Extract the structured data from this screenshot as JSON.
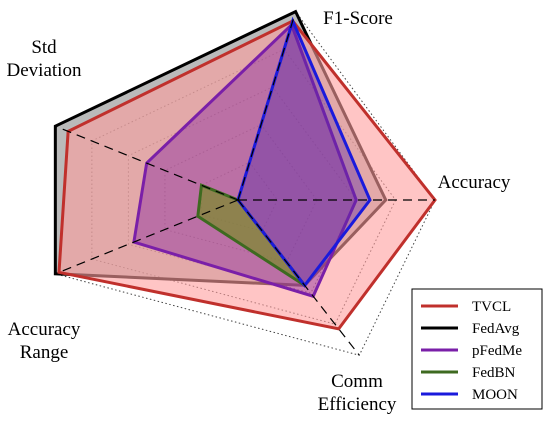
{
  "chart_data": {
    "type": "radar",
    "axes": [
      {
        "name": "Accuracy",
        "lines": [
          "Accuracy"
        ]
      },
      {
        "name": "Comm Efficiency",
        "lines": [
          "Comm",
          "Efficiency"
        ]
      },
      {
        "name": "Accuracy Range",
        "lines": [
          "Accuracy",
          "Range"
        ]
      },
      {
        "name": "Std Deviation",
        "lines": [
          "Std",
          "Deviation"
        ]
      },
      {
        "name": "F1-Score",
        "lines": [
          "F1-Score"
        ]
      }
    ],
    "range": [
      0,
      1
    ],
    "grid_levels": [
      0.2,
      0.4,
      0.6,
      0.8,
      1.0
    ],
    "series": [
      {
        "name": "FedAvg",
        "color": "#000000",
        "fill": "#8c8c8c",
        "fill_opacity": 0.6,
        "values": [
          0.75,
          0.55,
          1.0,
          1.0,
          1.0
        ]
      },
      {
        "name": "TVCL",
        "color": "#c0302c",
        "fill": "#ff9e9e",
        "fill_opacity": 0.6,
        "values": [
          1.0,
          0.83,
          0.98,
          0.93,
          0.95
        ]
      },
      {
        "name": "pFedMe",
        "color": "#7a1fa8",
        "fill": "#8a2aa0",
        "fill_opacity": 0.45,
        "values": [
          0.6,
          0.62,
          0.57,
          0.5,
          0.93
        ]
      },
      {
        "name": "FedBN",
        "color": "#3e6a20",
        "fill": "#7b8a2a",
        "fill_opacity": 0.7,
        "values": [
          0.0,
          0.55,
          0.22,
          0.2,
          0.0
        ]
      },
      {
        "name": "MOON",
        "color": "#1a1adc",
        "fill": "#5a2aa8",
        "fill_opacity": 0.4,
        "values": [
          0.67,
          0.55,
          0.0,
          0.0,
          0.95
        ]
      }
    ],
    "legend": {
      "position": "bottom-right",
      "order": [
        "TVCL",
        "FedAvg",
        "pFedMe",
        "FedBN",
        "MOON"
      ]
    },
    "grid": true
  }
}
